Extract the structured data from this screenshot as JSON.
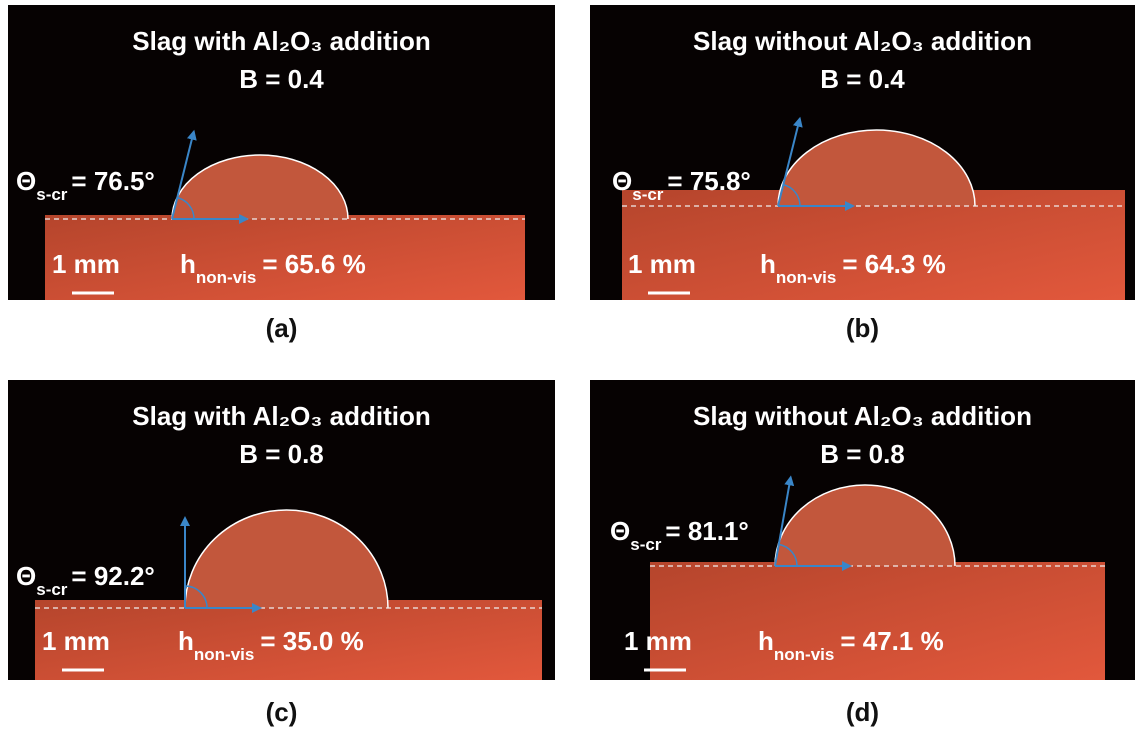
{
  "panels": [
    {
      "title": "Slag with Al₂O₃ addition",
      "basicity": "B = 0.4",
      "theta_symbol": "Θ",
      "theta_sub": "s-cr",
      "theta_value": "= 76.5°",
      "scale": "1 mm",
      "h_symbol": "h",
      "h_sub": "non-vis",
      "h_value": "= 65.6 %",
      "caption": "(a)"
    },
    {
      "title": "Slag without Al₂O₃ addition",
      "basicity": "B = 0.4",
      "theta_symbol": "Θ",
      "theta_sub": "s-cr",
      "theta_value": "= 75.8°",
      "scale": "1 mm",
      "h_symbol": "h",
      "h_sub": "non-vis",
      "h_value": "= 64.3 %",
      "caption": "(b)"
    },
    {
      "title": "Slag with Al₂O₃ addition",
      "basicity": "B = 0.8",
      "theta_symbol": "Θ",
      "theta_sub": "s-cr",
      "theta_value": "= 92.2°",
      "scale": "1 mm",
      "h_symbol": "h",
      "h_sub": "non-vis",
      "h_value": "= 35.0 %",
      "caption": "(c)"
    },
    {
      "title": "Slag without Al₂O₃ addition",
      "basicity": "B = 0.8",
      "theta_symbol": "Θ",
      "theta_sub": "s-cr",
      "theta_value": "= 81.1°",
      "scale": "1 mm",
      "h_symbol": "h",
      "h_sub": "non-vis",
      "h_value": "= 47.1 %",
      "caption": "(d)"
    }
  ]
}
